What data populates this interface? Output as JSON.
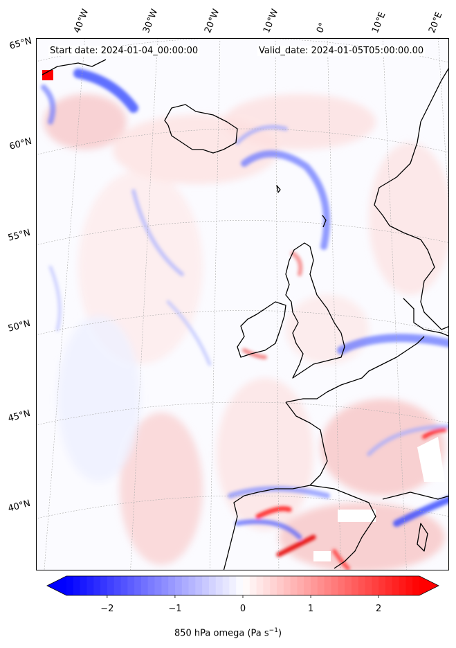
{
  "header": {
    "start_date": "Start date: 2024-01-04_00:00:00",
    "valid_date": "Valid_date: 2024-01-05T05:00:00.00"
  },
  "longitude_labels": [
    "40°W",
    "30°W",
    "20°W",
    "10°W",
    "0°",
    "10°E",
    "20°E"
  ],
  "latitude_labels": [
    "65°N",
    "60°N",
    "55°N",
    "50°N",
    "45°N",
    "40°N"
  ],
  "colorbar": {
    "ticks": [
      "−2",
      "−1",
      "0",
      "1",
      "2"
    ],
    "tick_values": [
      -2,
      -1,
      0,
      1,
      2
    ],
    "range": [
      -2.6,
      2.6
    ],
    "label": "850 hPa omega (Pa s",
    "label_sup": "−1",
    "label_end": ")",
    "colors": {
      "negative": "#0000ff",
      "zero": "#ffffff",
      "positive": "#ff0000"
    }
  },
  "map": {
    "field": "850 hPa omega",
    "land_outline_color": "#000000",
    "graticule_color": "#999999"
  }
}
